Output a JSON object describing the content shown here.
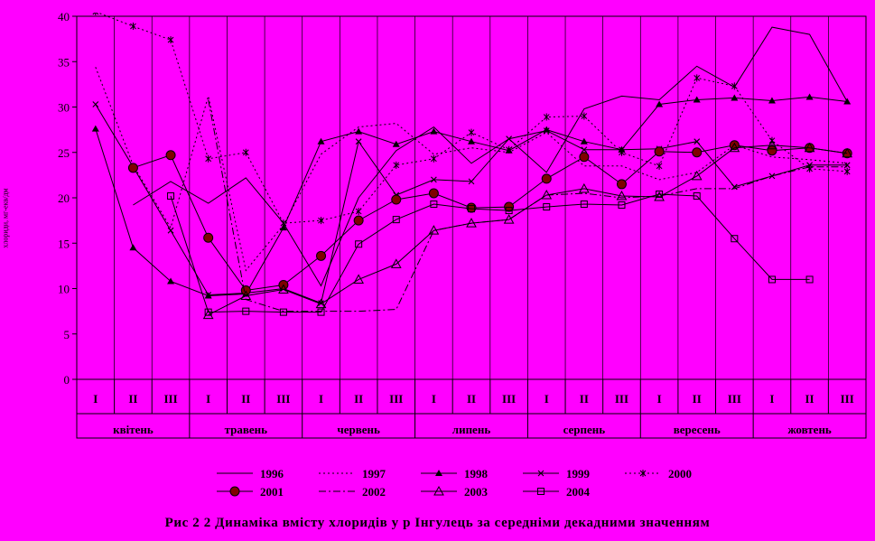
{
  "chart_data": {
    "type": "line",
    "caption": "Рис 2 2  Динаміка вмісту хлоридів у р  Інгулець за середніми декадними значенням",
    "ylabel": "хлориди, мг-екв/дм",
    "ylim": [
      0,
      40
    ],
    "yticks": [
      "0",
      "5",
      "10",
      "15",
      "20",
      "25",
      "30",
      "35",
      "40"
    ],
    "x": [
      "I",
      "II",
      "III",
      "I",
      "II",
      "III",
      "I",
      "II",
      "III",
      "I",
      "II",
      "III",
      "I",
      "II",
      "III",
      "I",
      "II",
      "III",
      "I",
      "II",
      "III"
    ],
    "months": [
      "квітень",
      "травень",
      "червень",
      "липень",
      "серпень",
      "вересень",
      "жовтень"
    ],
    "grid": "vertical",
    "legend_position": "bottom",
    "colors": {
      "background": "#ff00ff",
      "lines": "#000000"
    },
    "series": [
      {
        "name": "1996",
        "marker": "none",
        "dash": "solid",
        "values": [
          null,
          19.2,
          21.8,
          19.4,
          22.2,
          17.2,
          10.3,
          20.0,
          25.2,
          27.8,
          23.8,
          26.5,
          22.8,
          29.8,
          31.2,
          30.8,
          34.5,
          32.2,
          38.8,
          38.0,
          30.6
        ]
      },
      {
        "name": "1997",
        "marker": "none",
        "dash": "dotted",
        "values": [
          34.4,
          23.6,
          16.7,
          31.2,
          12.0,
          17.0,
          24.8,
          27.8,
          28.2,
          24.8,
          25.5,
          25.0,
          27.2,
          23.5,
          23.5,
          22.0,
          22.8,
          25.8,
          24.5,
          24.2,
          23.8
        ]
      },
      {
        "name": "1998",
        "marker": "filled-triangle",
        "dash": "solid",
        "values": [
          27.6,
          14.5,
          10.8,
          9.2,
          9.4,
          16.7,
          26.2,
          27.3,
          25.9,
          27.3,
          26.2,
          25.2,
          27.5,
          26.2,
          25.3,
          30.3,
          30.8,
          31.0,
          30.7,
          31.1,
          30.6
        ]
      },
      {
        "name": "1999",
        "marker": "cross",
        "dash": "solid",
        "values": [
          30.3,
          23.4,
          16.4,
          9.3,
          9.5,
          10.0,
          8.4,
          26.2,
          20.3,
          22.0,
          21.8,
          26.5,
          27.4,
          25.3,
          25.3,
          25.4,
          26.2,
          21.2,
          22.4,
          23.6,
          23.6
        ]
      },
      {
        "name": "2000",
        "marker": "star",
        "dash": "dotted",
        "values": [
          40.5,
          38.9,
          37.4,
          24.3,
          25.0,
          17.2,
          17.5,
          18.5,
          23.6,
          24.3,
          27.2,
          25.3,
          28.9,
          29.0,
          25.0,
          23.5,
          33.2,
          32.3,
          26.3,
          23.2,
          22.9
        ]
      },
      {
        "name": "2001",
        "marker": "big-circle",
        "dash": "solid",
        "values": [
          null,
          23.3,
          24.7,
          15.6,
          9.8,
          10.4,
          13.6,
          17.5,
          19.8,
          20.5,
          18.9,
          19.0,
          22.1,
          24.5,
          21.5,
          25.1,
          25.0,
          25.8,
          25.2,
          25.5,
          24.9
        ]
      },
      {
        "name": "2002",
        "marker": "none",
        "dash": "dash-dot",
        "values": [
          null,
          null,
          null,
          30.8,
          8.8,
          7.5,
          7.5,
          7.5,
          7.7,
          16.4,
          17.2,
          17.6,
          20.3,
          20.5,
          20.0,
          20.2,
          21.0,
          21.0,
          22.4,
          23.4,
          23.4
        ]
      },
      {
        "name": "2003",
        "marker": "open-triangle",
        "dash": "solid",
        "values": [
          null,
          null,
          null,
          7.1,
          9.2,
          9.9,
          8.3,
          11.0,
          12.7,
          16.4,
          17.2,
          17.6,
          20.3,
          21.0,
          20.2,
          20.1,
          22.4,
          25.5,
          25.8,
          25.5,
          24.9
        ]
      },
      {
        "name": "2004",
        "marker": "open-square",
        "dash": "solid",
        "values": [
          null,
          null,
          20.2,
          7.4,
          7.5,
          7.4,
          7.4,
          14.9,
          17.6,
          19.3,
          18.8,
          18.6,
          19.0,
          19.3,
          19.2,
          20.4,
          20.2,
          15.5,
          11.0,
          11.0,
          null
        ]
      }
    ]
  }
}
